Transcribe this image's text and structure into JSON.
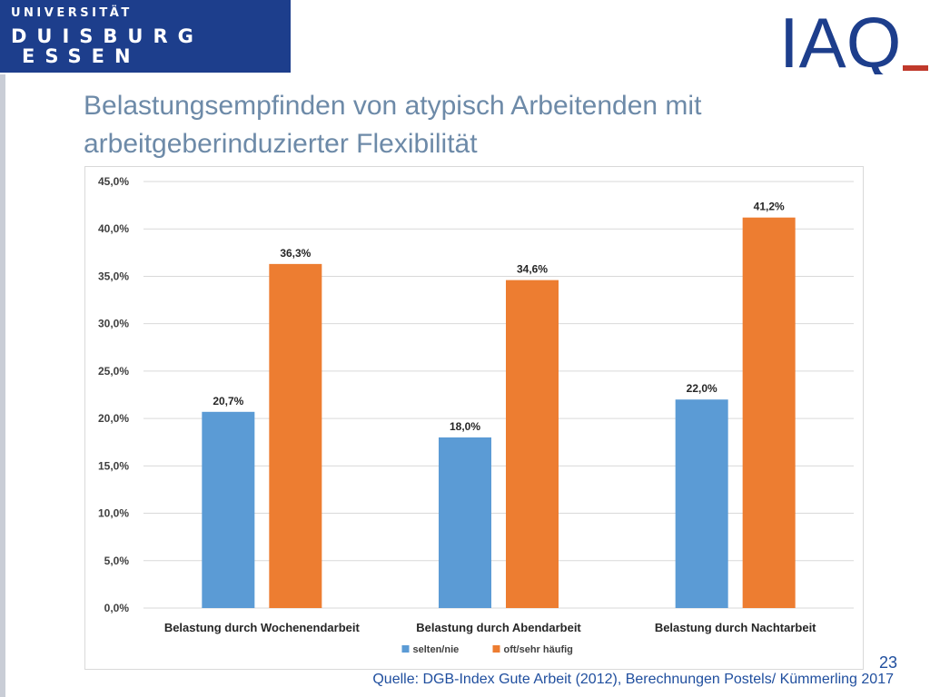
{
  "header": {
    "university_logo": {
      "line1": "UNIVERSITÄT",
      "line2": "DUISBURG",
      "line3": "ESSEN"
    },
    "institute_logo": "IAQ"
  },
  "slide": {
    "title": "Belastungsempfinden von atypisch Arbeitenden mit arbeitgeberinduzierter Flexibilität",
    "source": "Quelle: DGB-Index Gute Arbeit (2012), Berechnungen Postels/  Kümmerling 2017",
    "page_number": "23"
  },
  "colors": {
    "series_selten": "#5b9bd5",
    "series_oft": "#ed7d31",
    "grid": "#d9d9d9",
    "title": "#6d8aa8",
    "brand_blue": "#1d3e8c"
  },
  "chart_data": {
    "type": "bar",
    "categories": [
      "Belastung durch Wochenendarbeit",
      "Belastung durch Abendarbeit",
      "Belastung durch Nachtarbeit"
    ],
    "series": [
      {
        "name": "selten/nie",
        "values": [
          20.7,
          18.0,
          22.0
        ],
        "labels": [
          "20,7%",
          "18,0%",
          "22,0%"
        ],
        "color": "#5b9bd5"
      },
      {
        "name": "oft/sehr häufig",
        "values": [
          36.3,
          34.6,
          41.2
        ],
        "labels": [
          "36,3%",
          "34,6%",
          "41,2%"
        ],
        "color": "#ed7d31"
      }
    ],
    "ylim": [
      0,
      45
    ],
    "yticks": [
      "0,0%",
      "5,0%",
      "10,0%",
      "15,0%",
      "20,0%",
      "25,0%",
      "30,0%",
      "35,0%",
      "40,0%",
      "45,0%"
    ],
    "grid": true,
    "legend_position": "bottom",
    "data_labels": true
  }
}
